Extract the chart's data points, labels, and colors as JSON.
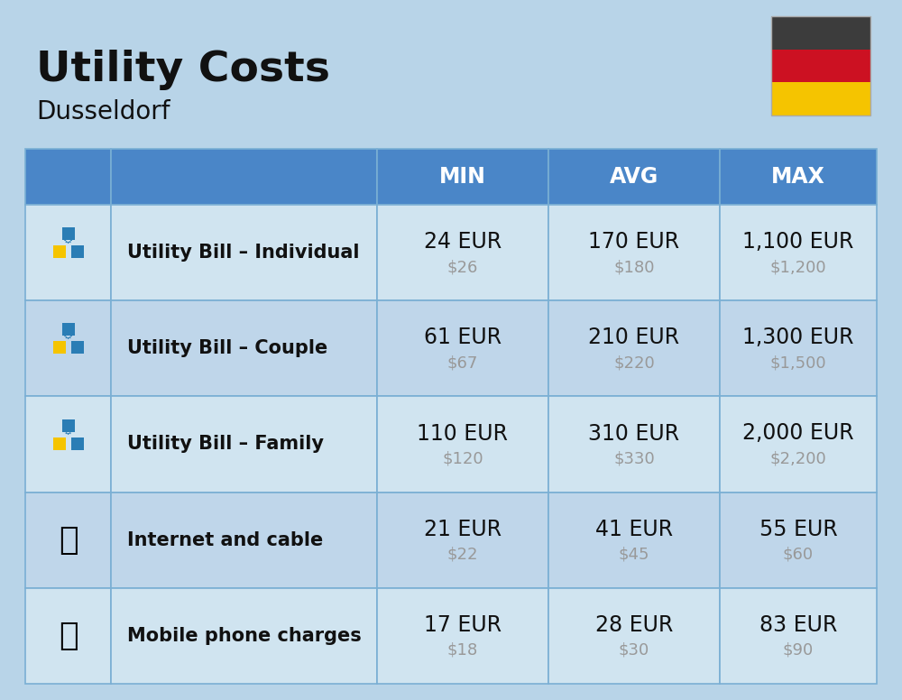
{
  "title": "Utility Costs",
  "subtitle": "Dusseldorf",
  "background_color": "#b8d4e8",
  "header_bg_color": "#4a86c8",
  "header_text_color": "#ffffff",
  "row_bg_color_light": "#d0e4f0",
  "row_bg_color_dark": "#bfd6ea",
  "col_headers": [
    "MIN",
    "AVG",
    "MAX"
  ],
  "rows": [
    {
      "label": "Utility Bill – Individual",
      "min_eur": "24 EUR",
      "min_usd": "$26",
      "avg_eur": "170 EUR",
      "avg_usd": "$180",
      "max_eur": "1,100 EUR",
      "max_usd": "$1,200"
    },
    {
      "label": "Utility Bill – Couple",
      "min_eur": "61 EUR",
      "min_usd": "$67",
      "avg_eur": "210 EUR",
      "avg_usd": "$220",
      "max_eur": "1,300 EUR",
      "max_usd": "$1,500"
    },
    {
      "label": "Utility Bill – Family",
      "min_eur": "110 EUR",
      "min_usd": "$120",
      "avg_eur": "310 EUR",
      "avg_usd": "$330",
      "max_eur": "2,000 EUR",
      "max_usd": "$2,200"
    },
    {
      "label": "Internet and cable",
      "min_eur": "21 EUR",
      "min_usd": "$22",
      "avg_eur": "41 EUR",
      "avg_usd": "$45",
      "max_eur": "55 EUR",
      "max_usd": "$60"
    },
    {
      "label": "Mobile phone charges",
      "min_eur": "17 EUR",
      "min_usd": "$18",
      "avg_eur": "28 EUR",
      "avg_usd": "$30",
      "max_eur": "83 EUR",
      "max_usd": "$90"
    }
  ],
  "flag_colors": [
    "#3c3c3c",
    "#cc1122",
    "#f5c400"
  ],
  "title_fontsize": 34,
  "subtitle_fontsize": 20,
  "header_fontsize": 17,
  "label_fontsize": 15,
  "value_fontsize": 17,
  "usd_fontsize": 13,
  "cell_border_color": "#7aafd4",
  "usd_color": "#999999",
  "text_color": "#111111",
  "label_dash": " – "
}
